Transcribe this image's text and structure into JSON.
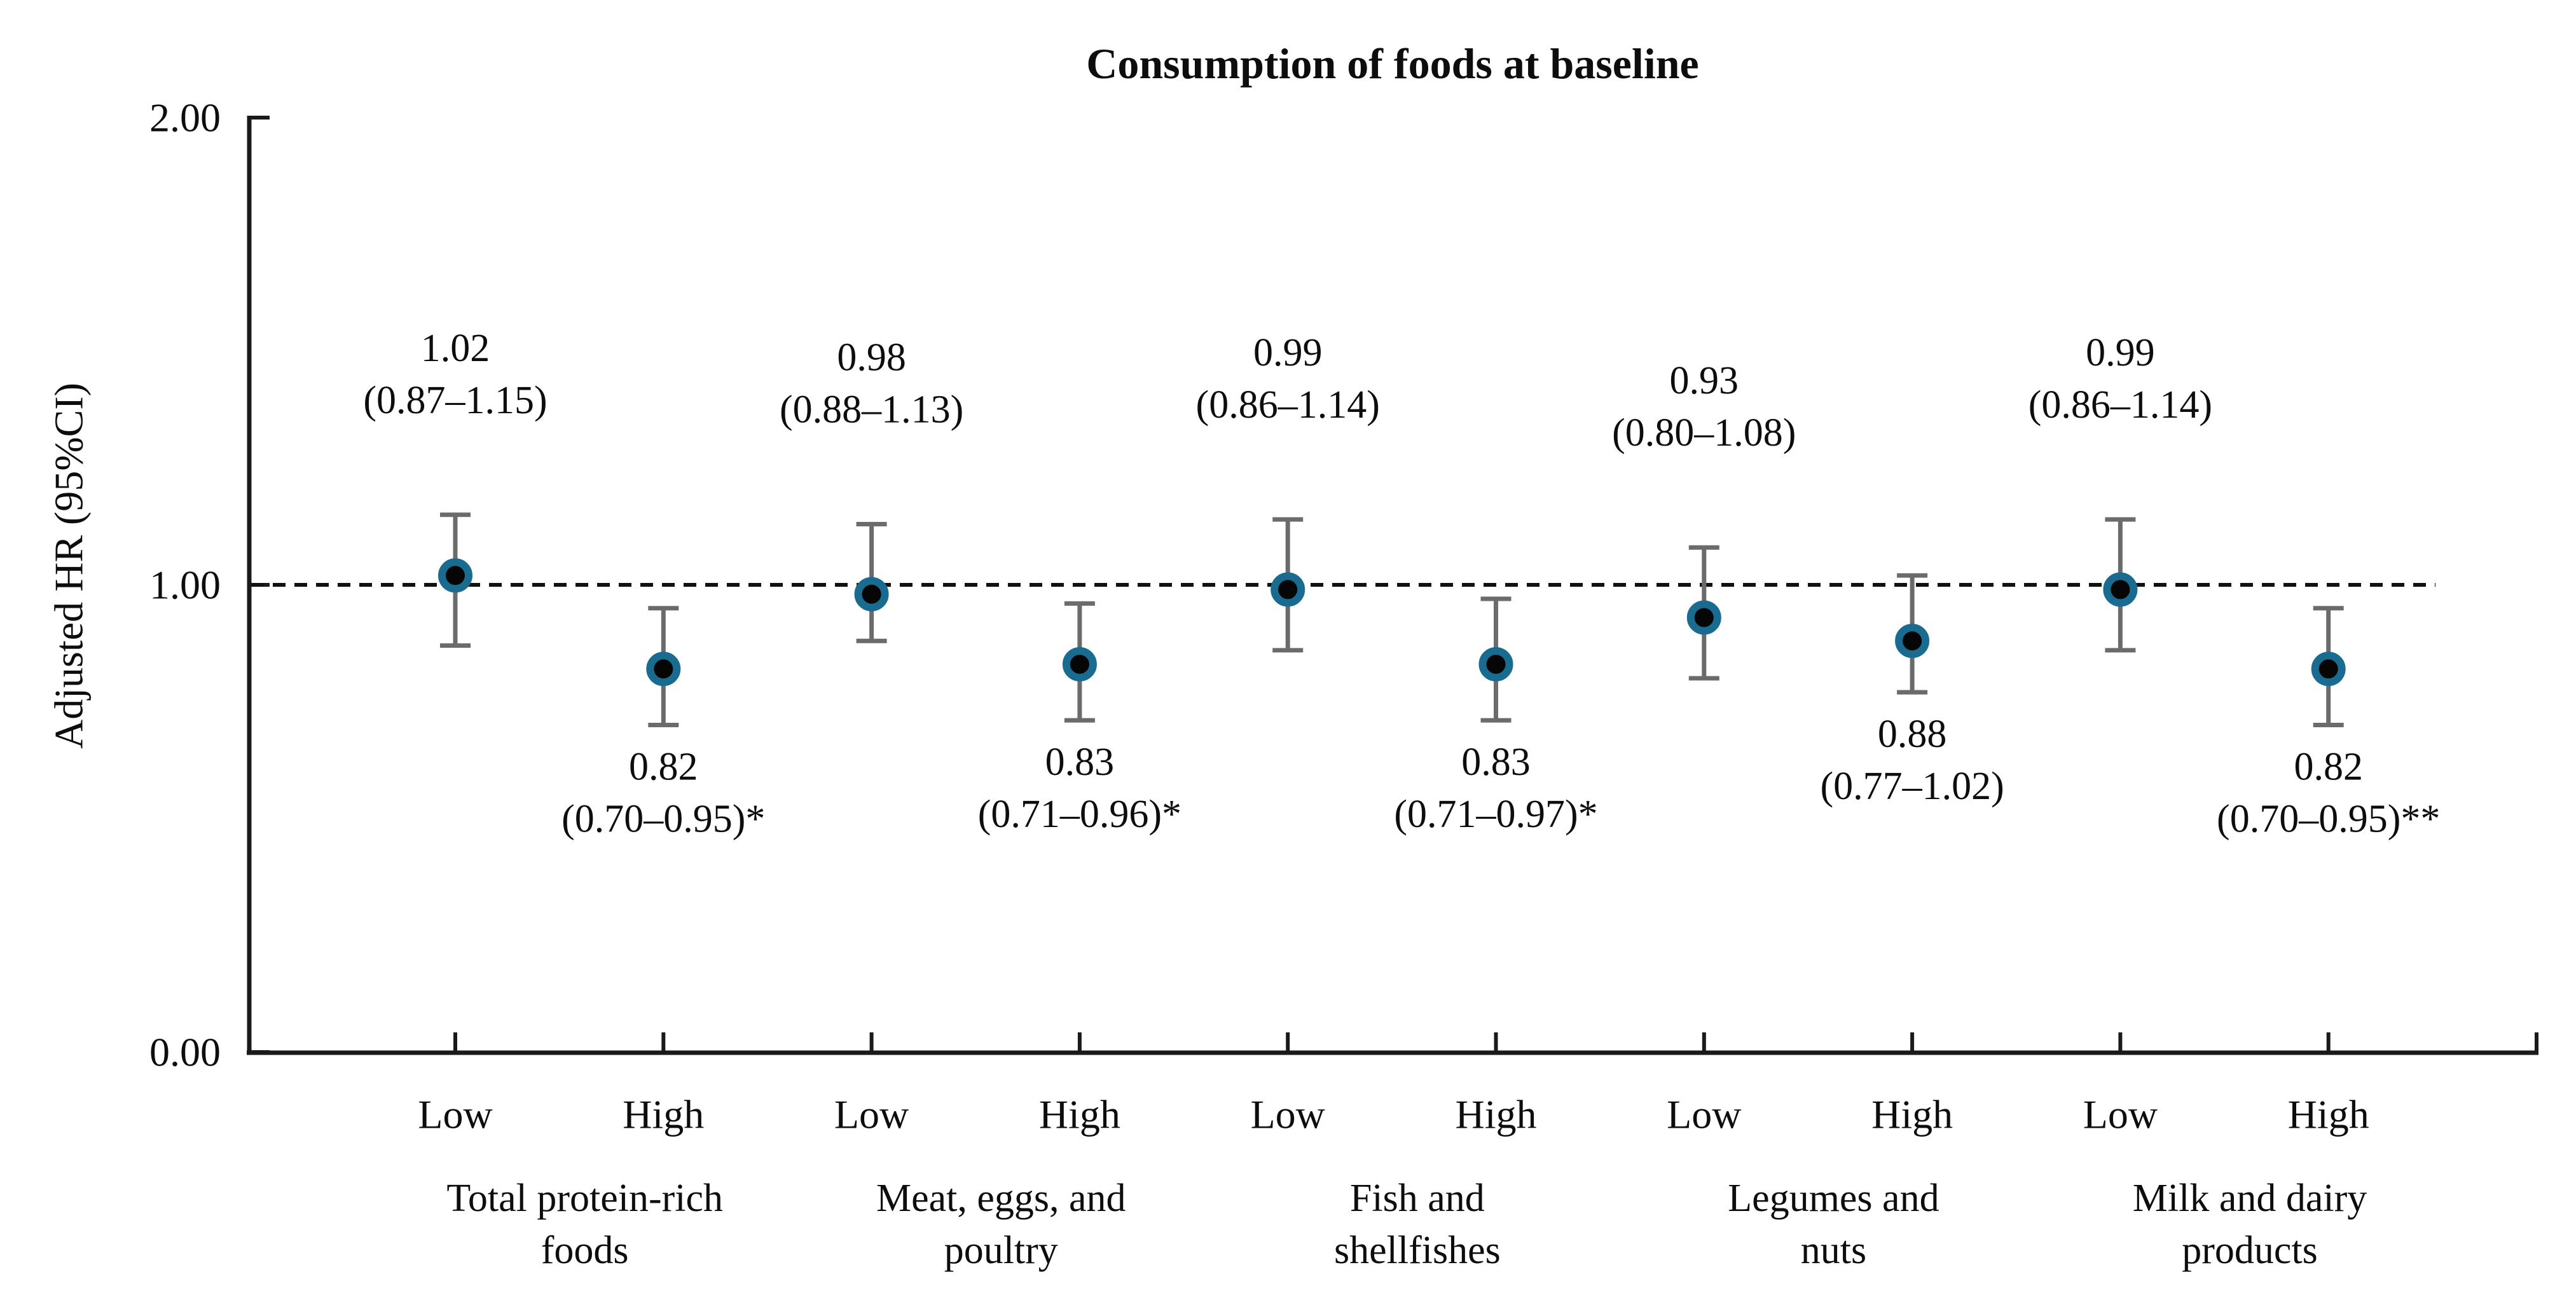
{
  "chart_data": {
    "type": "scatter",
    "title": "Consumption of foods at baseline",
    "ylabel": "Adjusted HR (95%CI)",
    "xlabel": "",
    "ylim": [
      0,
      2
    ],
    "yticks": [
      {
        "value": 0,
        "label": "0.00"
      },
      {
        "value": 1,
        "label": "1.00"
      },
      {
        "value": 2,
        "label": "2.00"
      }
    ],
    "reference_line": {
      "value": 1.0,
      "style": "dashed"
    },
    "grid": "off",
    "legend": "none",
    "groups": [
      {
        "label_lines": [
          "Total protein-rich",
          "foods"
        ],
        "points": [
          {
            "x_label": "Low",
            "hr": 1.02,
            "ci_low": 0.87,
            "ci_high": 1.15,
            "value_label": "1.02",
            "ci_label": "(0.87–1.15)",
            "annotation_position": "above"
          },
          {
            "x_label": "High",
            "hr": 0.82,
            "ci_low": 0.7,
            "ci_high": 0.95,
            "value_label": "0.82",
            "ci_label": "(0.70–0.95)*",
            "annotation_position": "below"
          }
        ]
      },
      {
        "label_lines": [
          "Meat, eggs, and",
          "poultry"
        ],
        "points": [
          {
            "x_label": "Low",
            "hr": 0.98,
            "ci_low": 0.88,
            "ci_high": 1.13,
            "value_label": "0.98",
            "ci_label": "(0.88–1.13)",
            "annotation_position": "above"
          },
          {
            "x_label": "High",
            "hr": 0.83,
            "ci_low": 0.71,
            "ci_high": 0.96,
            "value_label": "0.83",
            "ci_label": "(0.71–0.96)*",
            "annotation_position": "below"
          }
        ]
      },
      {
        "label_lines": [
          "Fish and",
          "shellfishes"
        ],
        "points": [
          {
            "x_label": "Low",
            "hr": 0.99,
            "ci_low": 0.86,
            "ci_high": 1.14,
            "value_label": "0.99",
            "ci_label": "(0.86–1.14)",
            "annotation_position": "above"
          },
          {
            "x_label": "High",
            "hr": 0.83,
            "ci_low": 0.71,
            "ci_high": 0.97,
            "value_label": "0.83",
            "ci_label": "(0.71–0.97)*",
            "annotation_position": "below"
          }
        ]
      },
      {
        "label_lines": [
          "Legumes and",
          "nuts"
        ],
        "points": [
          {
            "x_label": "Low",
            "hr": 0.93,
            "ci_low": 0.8,
            "ci_high": 1.08,
            "value_label": "0.93",
            "ci_label": "(0.80–1.08)",
            "annotation_position": "above"
          },
          {
            "x_label": "High",
            "hr": 0.88,
            "ci_low": 0.77,
            "ci_high": 1.02,
            "value_label": "0.88",
            "ci_label": "(0.77–1.02)",
            "annotation_position": "below"
          }
        ]
      },
      {
        "label_lines": [
          "Milk and dairy",
          "products"
        ],
        "points": [
          {
            "x_label": "Low",
            "hr": 0.99,
            "ci_low": 0.86,
            "ci_high": 1.14,
            "value_label": "0.99",
            "ci_label": "(0.86–1.14)",
            "annotation_position": "above"
          },
          {
            "x_label": "High",
            "hr": 0.82,
            "ci_low": 0.7,
            "ci_high": 0.95,
            "value_label": "0.82",
            "ci_label": "(0.70–0.95)**",
            "annotation_position": "below"
          }
        ]
      }
    ],
    "colors": {
      "marker_fill": "#060606",
      "marker_ring": "#196c90",
      "error_bar": "#6b6b6b",
      "axis": "#1a1a1a",
      "reference_line": "#111111",
      "text": "#0d0d0d"
    }
  }
}
